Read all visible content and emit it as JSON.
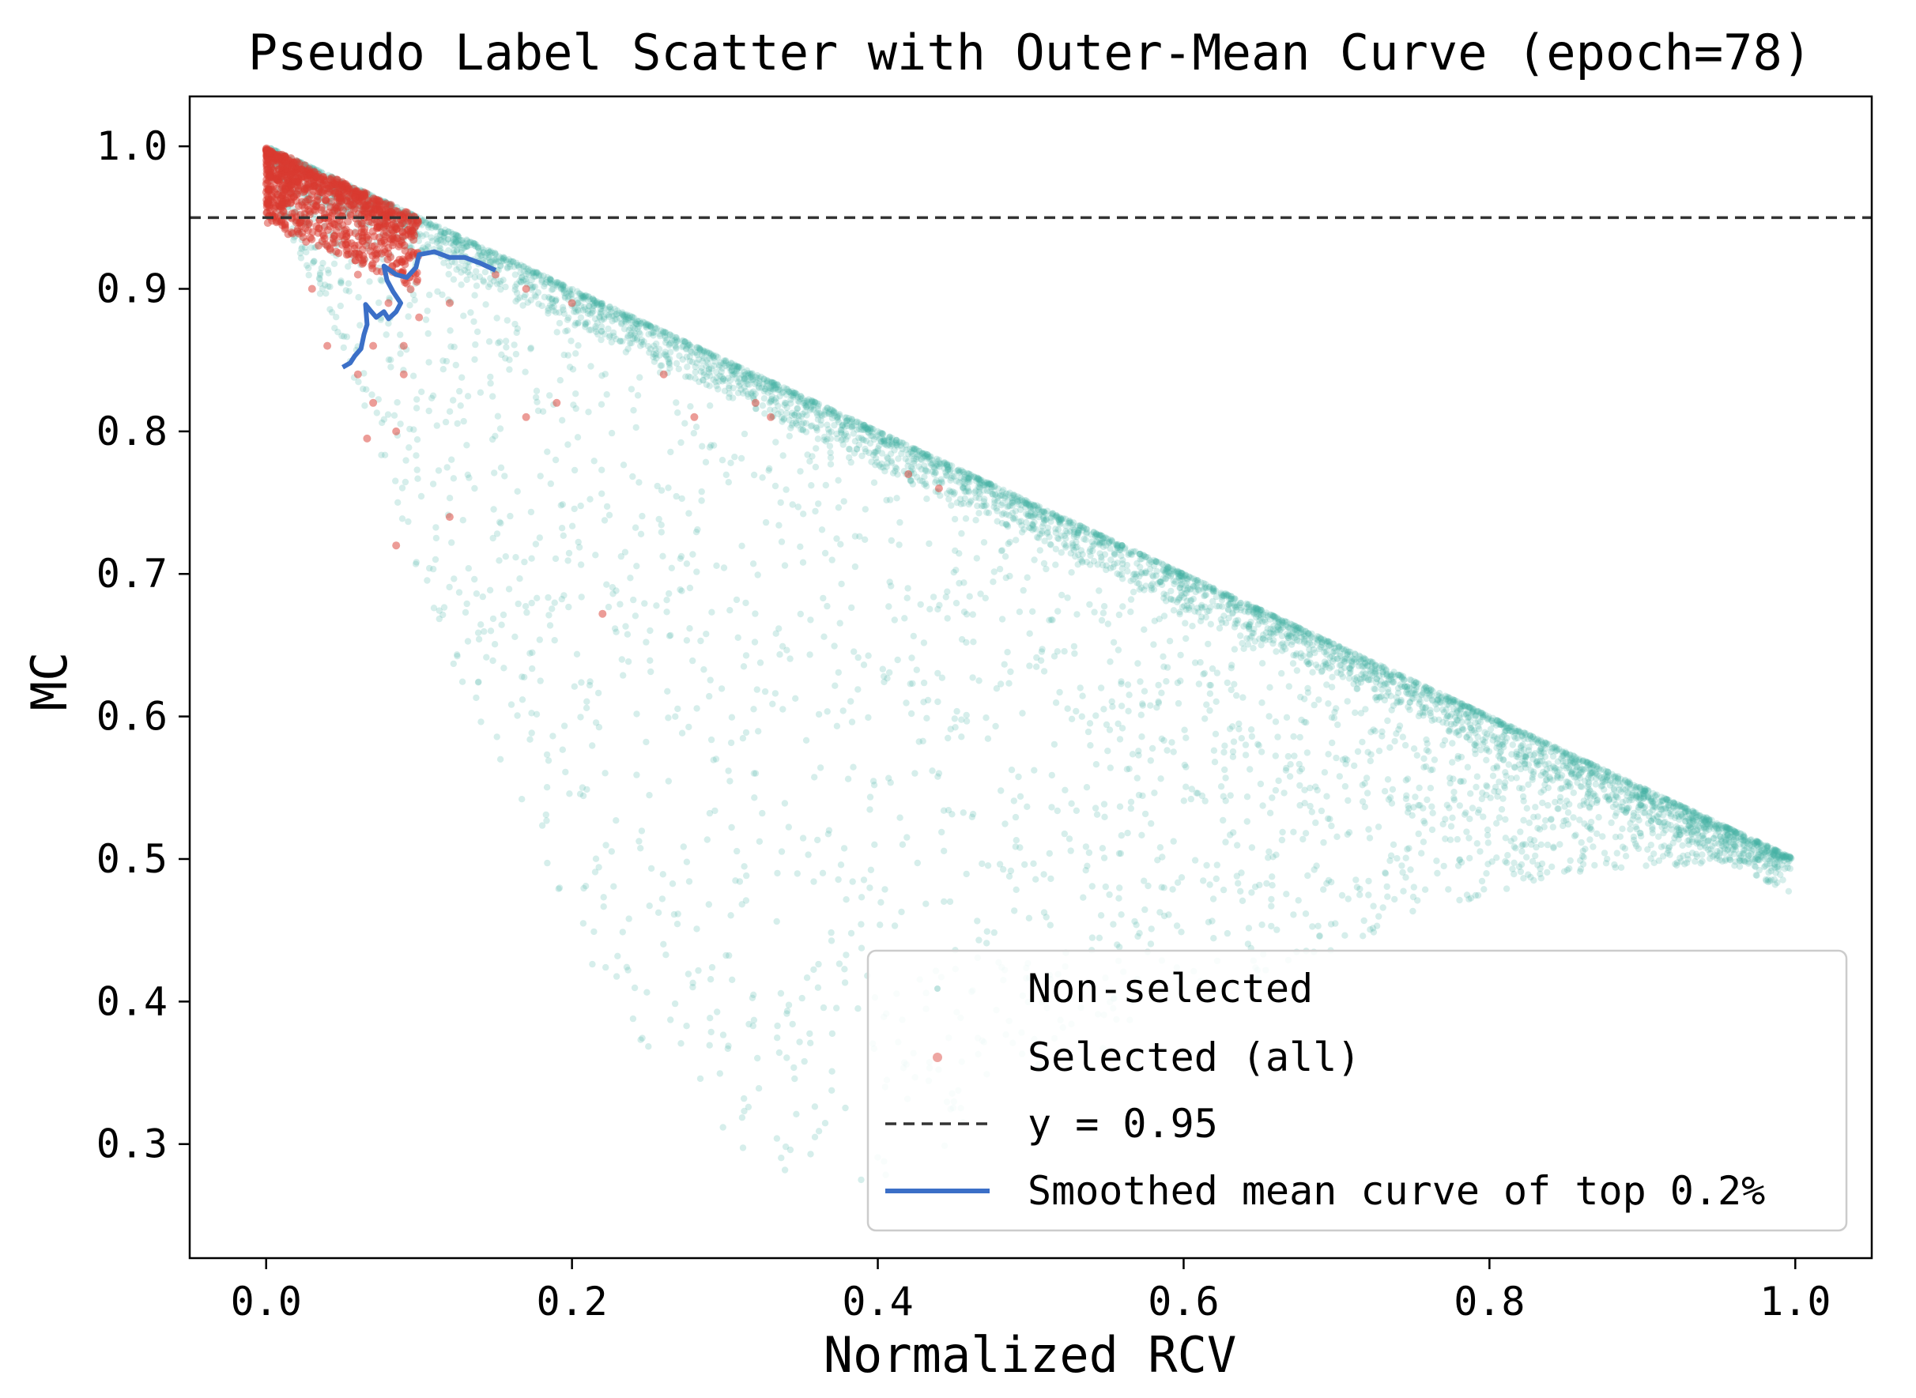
{
  "chart_data": {
    "type": "scatter",
    "title": "Pseudo Label Scatter with Outer-Mean Curve (epoch=78)",
    "xlabel": "Normalized RCV",
    "ylabel": "MC",
    "xlim": [
      -0.05,
      1.05
    ],
    "ylim": [
      0.22,
      1.035
    ],
    "x_ticks": [
      0.0,
      0.2,
      0.4,
      0.6,
      0.8,
      1.0
    ],
    "y_ticks": [
      0.3,
      0.4,
      0.5,
      0.6,
      0.7,
      0.8,
      0.9,
      1.0
    ],
    "x_tick_labels": [
      "0.0",
      "0.2",
      "0.4",
      "0.6",
      "0.8",
      "1.0"
    ],
    "y_tick_labels": [
      "0.3",
      "0.4",
      "0.5",
      "0.6",
      "0.7",
      "0.8",
      "0.9",
      "1.0"
    ],
    "grid": false,
    "legend_position": "lower-right",
    "threshold": {
      "y": 0.95,
      "label": "y = 0.95",
      "color": "#333333"
    },
    "series": [
      {
        "name": "Non-selected",
        "kind": "scatter",
        "color": "#45b0a2",
        "upper_edge": [
          [
            0.0,
            1.0
          ],
          [
            1.0,
            0.5
          ]
        ],
        "lower_edge": [
          [
            0.0,
            0.97
          ],
          [
            0.05,
            0.86
          ],
          [
            0.1,
            0.7
          ],
          [
            0.15,
            0.56
          ],
          [
            0.2,
            0.45
          ],
          [
            0.25,
            0.36
          ],
          [
            0.3,
            0.3
          ],
          [
            0.37,
            0.26
          ],
          [
            0.45,
            0.3
          ],
          [
            0.55,
            0.36
          ],
          [
            0.65,
            0.41
          ],
          [
            0.75,
            0.46
          ],
          [
            0.85,
            0.49
          ],
          [
            1.0,
            0.5
          ]
        ],
        "point_count": 6000
      },
      {
        "name": "Selected (all)",
        "kind": "scatter",
        "color": "#d93a30",
        "sample_points": [
          [
            0.04,
            0.93
          ],
          [
            0.06,
            0.91
          ],
          [
            0.08,
            0.89
          ],
          [
            0.1,
            0.88
          ],
          [
            0.09,
            0.86
          ],
          [
            0.12,
            0.89
          ],
          [
            0.15,
            0.91
          ],
          [
            0.17,
            0.9
          ],
          [
            0.2,
            0.89
          ],
          [
            0.26,
            0.84
          ],
          [
            0.28,
            0.81
          ],
          [
            0.33,
            0.81
          ],
          [
            0.32,
            0.82
          ],
          [
            0.42,
            0.77
          ],
          [
            0.44,
            0.76
          ],
          [
            0.17,
            0.81
          ],
          [
            0.19,
            0.82
          ],
          [
            0.07,
            0.86
          ],
          [
            0.09,
            0.84
          ],
          [
            0.06,
            0.84
          ],
          [
            0.07,
            0.82
          ],
          [
            0.085,
            0.8
          ],
          [
            0.066,
            0.795
          ],
          [
            0.12,
            0.74
          ],
          [
            0.085,
            0.72
          ],
          [
            0.22,
            0.672
          ],
          [
            0.04,
            0.86
          ],
          [
            0.03,
            0.9
          ]
        ]
      },
      {
        "name": "Smoothed mean curve of top 0.2%",
        "kind": "line",
        "color": "#3b6fc7",
        "points": [
          [
            0.05,
            0.845
          ],
          [
            0.055,
            0.848
          ],
          [
            0.058,
            0.853
          ],
          [
            0.062,
            0.858
          ],
          [
            0.064,
            0.868
          ],
          [
            0.066,
            0.875
          ],
          [
            0.065,
            0.889
          ],
          [
            0.068,
            0.885
          ],
          [
            0.072,
            0.88
          ],
          [
            0.077,
            0.884
          ],
          [
            0.08,
            0.879
          ],
          [
            0.085,
            0.884
          ],
          [
            0.088,
            0.89
          ],
          [
            0.083,
            0.898
          ],
          [
            0.079,
            0.906
          ],
          [
            0.077,
            0.916
          ],
          [
            0.085,
            0.91
          ],
          [
            0.092,
            0.908
          ],
          [
            0.098,
            0.915
          ],
          [
            0.1,
            0.924
          ],
          [
            0.11,
            0.926
          ],
          [
            0.12,
            0.922
          ],
          [
            0.13,
            0.922
          ],
          [
            0.14,
            0.918
          ],
          [
            0.15,
            0.913
          ]
        ]
      }
    ],
    "legend": [
      {
        "label": "Non-selected",
        "marker": "dot",
        "color": "#45b0a2"
      },
      {
        "label": "Selected (all)",
        "marker": "dot",
        "color": "#d93a30"
      },
      {
        "label": "y = 0.95",
        "marker": "dashed-line",
        "color": "#333333"
      },
      {
        "label": "Smoothed mean curve of top 0.2%",
        "marker": "solid-line",
        "color": "#3b6fc7"
      }
    ]
  }
}
